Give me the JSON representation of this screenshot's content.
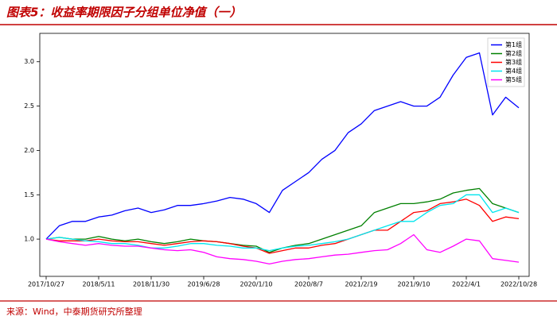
{
  "chart_data": {
    "type": "line",
    "title": "图表5：收益率期限因子分组单位净值（一）",
    "source": "来源：Wind，中泰期货研究所整理",
    "categories": [
      "2017/10/27",
      null,
      null,
      null,
      "2018/5/11",
      null,
      null,
      null,
      "2018/11/30",
      null,
      null,
      null,
      "2019/6/28",
      null,
      null,
      null,
      "2020/1/10",
      null,
      null,
      null,
      "2020/8/7",
      null,
      null,
      null,
      "2021/2/19",
      null,
      null,
      null,
      "2021/9/10",
      null,
      null,
      null,
      "2022/4/1",
      null,
      null,
      null,
      "2022/10/28"
    ],
    "ylim": [
      0.58,
      3.32
    ],
    "yticks": [
      {
        "value": 1,
        "label": "1.0"
      },
      1.5,
      {
        "value": 2,
        "label": "2.0"
      },
      2.5,
      {
        "value": 3,
        "label": "3.0"
      }
    ],
    "legend": "upper right",
    "grid": false,
    "series": [
      {
        "name": "第1组",
        "color": "#0000ff",
        "values": [
          1.0,
          1.15,
          1.2,
          1.2,
          1.25,
          1.27,
          1.32,
          1.35,
          1.3,
          1.33,
          1.38,
          1.38,
          1.4,
          1.43,
          1.47,
          1.45,
          1.4,
          1.3,
          1.55,
          1.65,
          1.75,
          1.9,
          2.0,
          2.2,
          2.3,
          2.45,
          2.5,
          2.55,
          2.5,
          2.5,
          2.6,
          2.85,
          3.05,
          3.1,
          2.4,
          2.6,
          2.48
        ]
      },
      {
        "name": "第2组",
        "color": "#008000",
        "values": [
          1.0,
          1.02,
          1.0,
          1.0,
          1.03,
          1.0,
          0.98,
          1.0,
          0.97,
          0.95,
          0.97,
          1.0,
          0.98,
          0.97,
          0.95,
          0.93,
          0.92,
          0.85,
          0.9,
          0.93,
          0.95,
          1.0,
          1.05,
          1.1,
          1.15,
          1.3,
          1.35,
          1.4,
          1.4,
          1.42,
          1.45,
          1.52,
          1.55,
          1.57,
          1.4,
          1.35,
          1.3
        ]
      },
      {
        "name": "第3组",
        "color": "#ff0000",
        "values": [
          1.0,
          0.98,
          0.98,
          0.98,
          1.0,
          0.98,
          0.97,
          0.97,
          0.95,
          0.93,
          0.95,
          0.97,
          0.98,
          0.97,
          0.95,
          0.92,
          0.9,
          0.84,
          0.87,
          0.9,
          0.9,
          0.93,
          0.95,
          1.0,
          1.05,
          1.1,
          1.1,
          1.2,
          1.3,
          1.32,
          1.4,
          1.42,
          1.45,
          1.38,
          1.2,
          1.25,
          1.23
        ]
      },
      {
        "name": "第4组",
        "color": "#00e5ee",
        "values": [
          1.0,
          1.02,
          1.0,
          0.98,
          0.97,
          0.95,
          0.95,
          0.93,
          0.9,
          0.9,
          0.92,
          0.95,
          0.95,
          0.93,
          0.92,
          0.9,
          0.9,
          0.87,
          0.9,
          0.92,
          0.93,
          0.95,
          0.97,
          1.0,
          1.05,
          1.1,
          1.15,
          1.2,
          1.2,
          1.3,
          1.38,
          1.4,
          1.5,
          1.5,
          1.3,
          1.35,
          1.3
        ]
      },
      {
        "name": "第5组",
        "color": "#ff00ff",
        "values": [
          1.0,
          0.97,
          0.95,
          0.93,
          0.95,
          0.93,
          0.92,
          0.92,
          0.9,
          0.88,
          0.87,
          0.88,
          0.85,
          0.8,
          0.78,
          0.77,
          0.75,
          0.72,
          0.75,
          0.77,
          0.78,
          0.8,
          0.82,
          0.83,
          0.85,
          0.87,
          0.88,
          0.95,
          1.05,
          0.88,
          0.85,
          0.92,
          1.0,
          0.98,
          0.78,
          0.76,
          0.74
        ]
      }
    ]
  }
}
